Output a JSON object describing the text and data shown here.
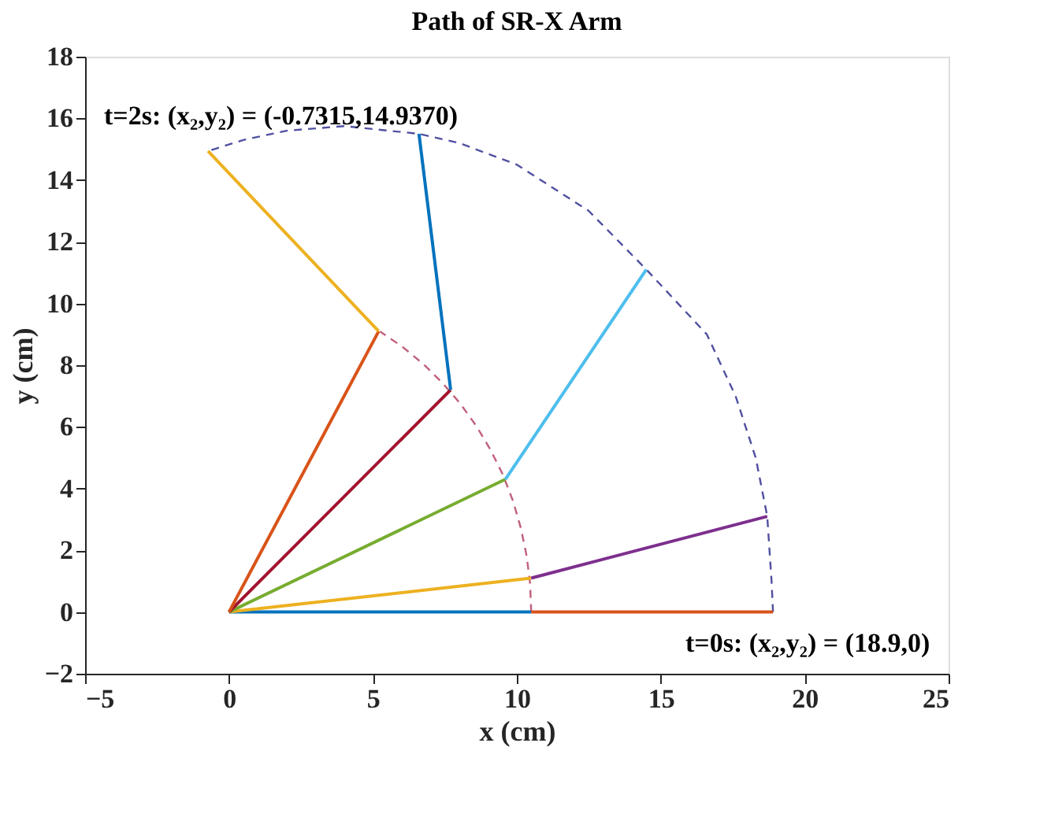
{
  "chart_data": {
    "type": "line",
    "title": "Path of SR-X Arm",
    "xlabel": "x (cm)",
    "ylabel": "y (cm)",
    "xlim": [
      -5,
      25
    ],
    "xticks": [
      -5,
      0,
      5,
      10,
      15,
      20,
      25
    ],
    "ylim": [
      -2,
      18
    ],
    "yticks": [
      -2,
      0,
      2,
      4,
      6,
      8,
      10,
      12,
      14,
      16,
      18
    ],
    "grid": false,
    "legend": false,
    "marker": "none",
    "line_style": "solid",
    "series": [
      {
        "color": "#0072bd",
        "x": [
          0,
          10.5
        ],
        "values": [
          0,
          0
        ]
      },
      {
        "color": "#d95319",
        "x": [
          10.5,
          18.9
        ],
        "values": [
          0,
          0
        ]
      },
      {
        "color": "#edb120",
        "x": [
          0,
          10.5
        ],
        "values": [
          0,
          1.1
        ]
      },
      {
        "color": "#7e2f8e",
        "x": [
          10.5,
          18.7
        ],
        "values": [
          1.1,
          3.1
        ]
      },
      {
        "color": "#77ac30",
        "x": [
          0,
          9.6
        ],
        "values": [
          0,
          4.3
        ]
      },
      {
        "color": "#4dbeee",
        "x": [
          9.6,
          14.5
        ],
        "values": [
          4.3,
          11.1
        ]
      },
      {
        "color": "#a2142f",
        "x": [
          0,
          7.7
        ],
        "values": [
          0,
          7.2
        ]
      },
      {
        "color": "#0072bd",
        "x": [
          7.7,
          6.6
        ],
        "values": [
          7.2,
          15.5
        ]
      },
      {
        "color": "#d95319",
        "x": [
          0,
          5.2
        ],
        "values": [
          0,
          9.1
        ]
      },
      {
        "color": "#edb120",
        "x": [
          5.2,
          -0.73
        ],
        "values": [
          9.1,
          14.94
        ]
      },
      {
        "color": "#c0607a",
        "line_style": "dashed",
        "x": [
          10.5,
          10.46,
          10.34,
          10.14,
          9.87,
          9.52,
          9.09,
          8.6,
          8.04,
          7.42,
          6.75,
          6.02,
          5.25
        ],
        "values": [
          0,
          0.92,
          1.82,
          2.72,
          3.59,
          4.44,
          5.25,
          6.02,
          6.75,
          7.42,
          8.04,
          8.6,
          9.09
        ]
      },
      {
        "color": "#5050a0",
        "line_style": "dashed",
        "x": [
          18.9,
          18.85,
          18.7,
          18.3,
          17.6,
          16.6,
          14.5,
          12.5,
          10,
          8,
          6.6,
          4,
          2,
          0.5,
          -0.73
        ],
        "values": [
          0,
          1,
          3.1,
          5,
          7,
          9,
          11.1,
          13,
          14.5,
          15.2,
          15.5,
          15.75,
          15.6,
          15.3,
          14.94
        ]
      }
    ],
    "annotations": [
      {
        "text": "t=2s: (x₂,y₂) = (-0.7315,14.9370)",
        "x": -0.73,
        "y": 14.94
      },
      {
        "text": "t=0s: (x₂,y₂) = (18.9,0)",
        "x": 18.9,
        "y": 0
      }
    ]
  }
}
